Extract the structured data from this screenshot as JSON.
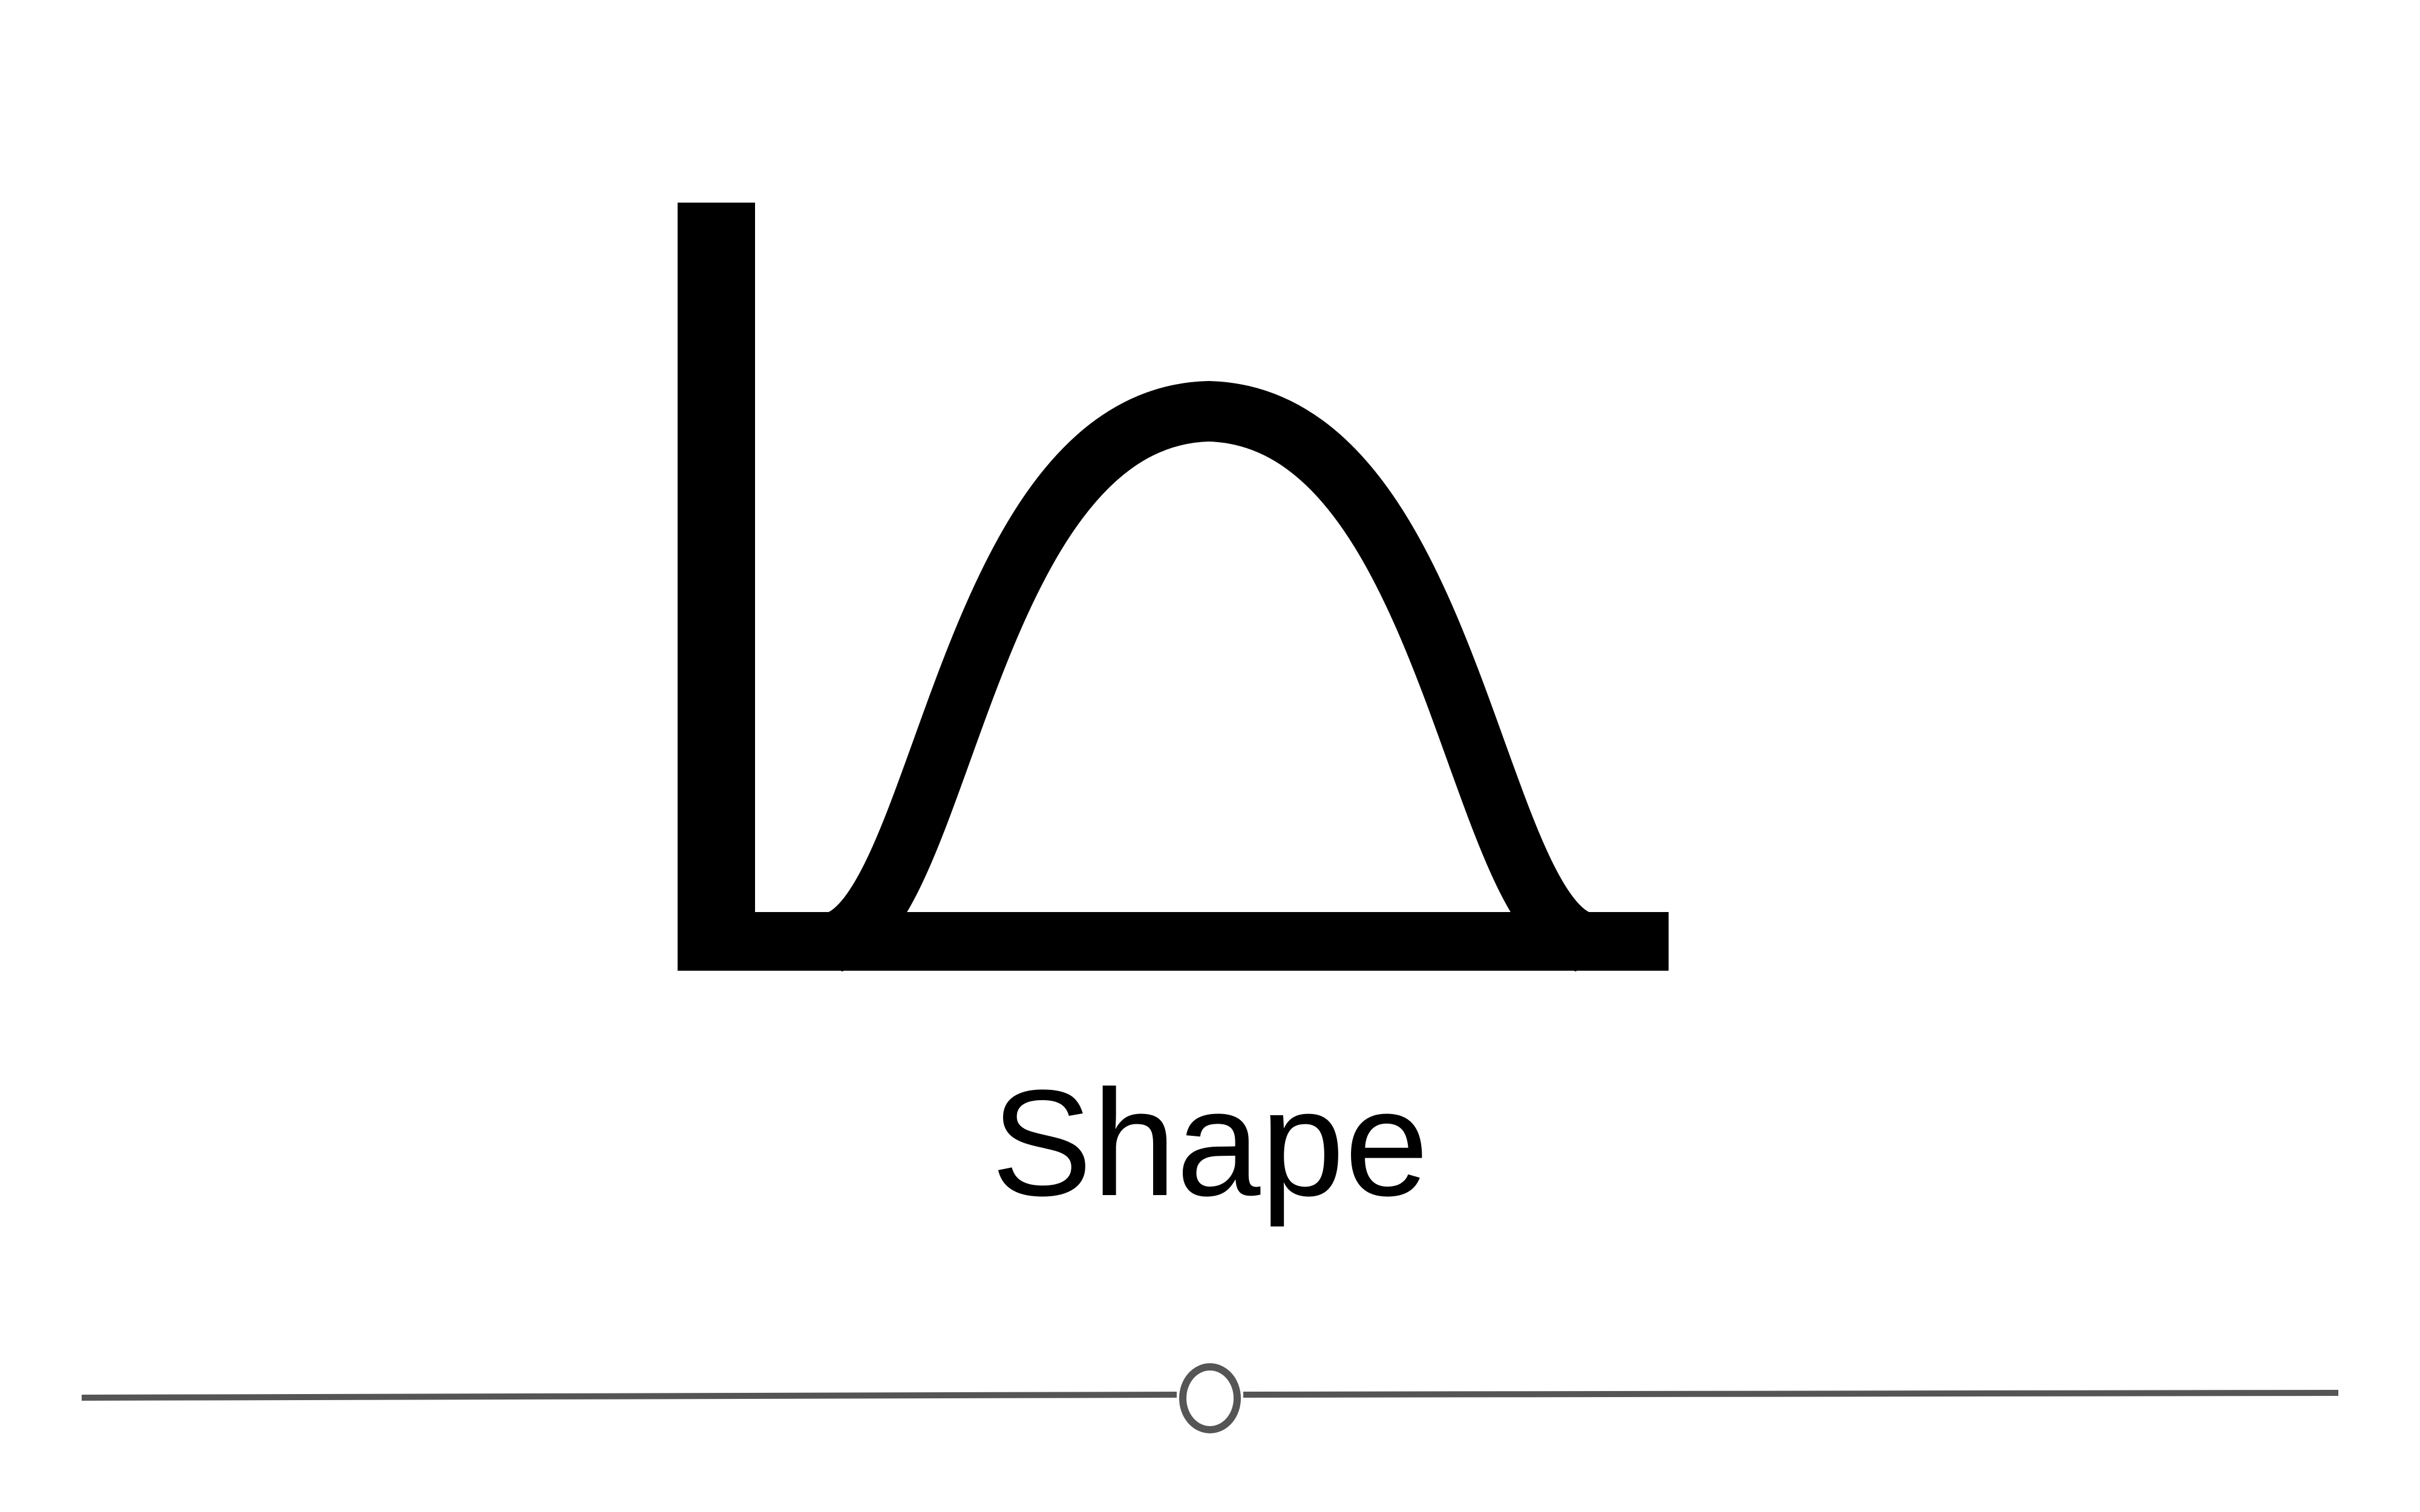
{
  "shape_label": "Shape",
  "icons": {
    "shape": "bell-curve-shape-icon",
    "slider_thumb": "circle-slider-thumb"
  },
  "slider": {
    "value": 0.5
  },
  "colors": {
    "icon": "#000000",
    "label": "#000000",
    "slider_track": "#555555",
    "slider_thumb_fill": "#ffffff",
    "background": "#ffffff"
  }
}
